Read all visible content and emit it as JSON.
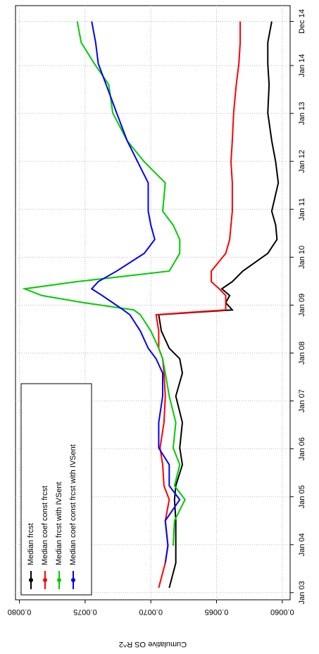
{
  "chart_data": {
    "type": "line",
    "ylabel": "Cumulative OS R^2",
    "x": [
      2003.1,
      2003.62,
      2003.98,
      2004.5,
      2004.94,
      2005.23,
      2005.67,
      2006.02,
      2006.55,
      2007.1,
      2007.58,
      2007.88,
      2008.1,
      2008.46,
      2008.8,
      2008.9,
      2009.05,
      2009.2,
      2009.34,
      2009.49,
      2009.71,
      2010.08,
      2010.37,
      2010.67,
      2010.96,
      2011.55,
      2011.99,
      2012.43,
      2013.01,
      2013.6,
      2014.04,
      2014.48,
      2014.92
    ],
    "series": [
      {
        "name": "Median frcst",
        "color": "#000000",
        "values": [
          0.00686,
          0.00681,
          0.00681,
          0.00681,
          0.00682,
          0.00681,
          0.00676,
          0.00678,
          0.00676,
          0.00681,
          0.00676,
          0.00678,
          0.00686,
          0.00692,
          0.00694,
          0.00638,
          0.00643,
          0.0064,
          0.00646,
          0.00638,
          0.0063,
          0.00611,
          0.00604,
          0.00605,
          0.00608,
          0.00603,
          0.00605,
          0.00608,
          0.00611,
          0.0061,
          0.00611,
          0.00611,
          0.00608
        ]
      },
      {
        "name": "Median coef const frcst",
        "color": "#ff0000",
        "values": [
          0.00694,
          0.00689,
          0.00687,
          0.00689,
          0.00686,
          0.0069,
          0.00691,
          0.00693,
          0.0069,
          0.00689,
          0.0069,
          0.00691,
          0.00694,
          0.00694,
          0.00696,
          0.00643,
          0.00643,
          0.00643,
          0.00648,
          0.00654,
          0.00654,
          0.00643,
          0.0064,
          0.00639,
          0.00638,
          0.00638,
          0.00639,
          0.00638,
          0.00637,
          0.00635,
          0.00633,
          0.00632,
          0.00632
        ]
      },
      {
        "name": "Median frcst with IVSent",
        "color": "#00cc00",
        "values": [
          null,
          null,
          0.00683,
          0.00682,
          0.00674,
          0.00682,
          0.00678,
          0.00683,
          0.00681,
          0.00686,
          0.00689,
          0.00691,
          0.00694,
          0.007,
          0.00708,
          0.00713,
          0.00751,
          0.00783,
          0.00796,
          0.00756,
          0.00686,
          0.00678,
          0.00678,
          0.00683,
          0.00691,
          0.00689,
          0.00705,
          0.00718,
          0.00729,
          0.00732,
          0.00743,
          0.00753,
          0.00756
        ]
      },
      {
        "name": "Median coef const frcst with IVSent",
        "color": "#0000ff",
        "values": [
          null,
          0.00689,
          0.00687,
          0.00689,
          0.00678,
          0.00686,
          0.00686,
          0.00694,
          0.00694,
          0.00691,
          0.00691,
          0.00696,
          0.00702,
          0.00708,
          0.00716,
          0.00721,
          0.00729,
          0.00737,
          0.00745,
          0.0074,
          0.00726,
          0.00705,
          0.00697,
          0.007,
          0.00702,
          0.00702,
          0.0071,
          0.00718,
          0.00726,
          0.00734,
          0.0074,
          0.00742,
          0.00745
        ]
      }
    ],
    "xlim": [
      2002.85,
      2015.25
    ],
    "xticks": [
      {
        "value": 2003,
        "label": "Jan 03"
      },
      {
        "value": 2004,
        "label": "Jan 04"
      },
      {
        "value": 2005,
        "label": "Jan 05"
      },
      {
        "value": 2006,
        "label": "Jan 06"
      },
      {
        "value": 2007,
        "label": "Jan 07"
      },
      {
        "value": 2008,
        "label": "Jan 08"
      },
      {
        "value": 2009,
        "label": "Jan 09"
      },
      {
        "value": 2010,
        "label": "Jan 10"
      },
      {
        "value": 2011,
        "label": "Jan 11"
      },
      {
        "value": 2012,
        "label": "Jan 12"
      },
      {
        "value": 2013,
        "label": "Jan 13"
      },
      {
        "value": 2014,
        "label": "Jan 14"
      },
      {
        "value": 2014.92,
        "label": "Dec 14"
      }
    ],
    "ylim": [
      0.00594,
      0.00803
    ],
    "yticks": [
      {
        "value": 0.006,
        "label": "0.0060"
      },
      {
        "value": 0.0065,
        "label": "0.0065"
      },
      {
        "value": 0.007,
        "label": "0.0070"
      },
      {
        "value": 0.0075,
        "label": "0.0075"
      },
      {
        "value": 0.008,
        "label": "0.0080"
      }
    ],
    "grid": true,
    "legend": "top-left"
  }
}
